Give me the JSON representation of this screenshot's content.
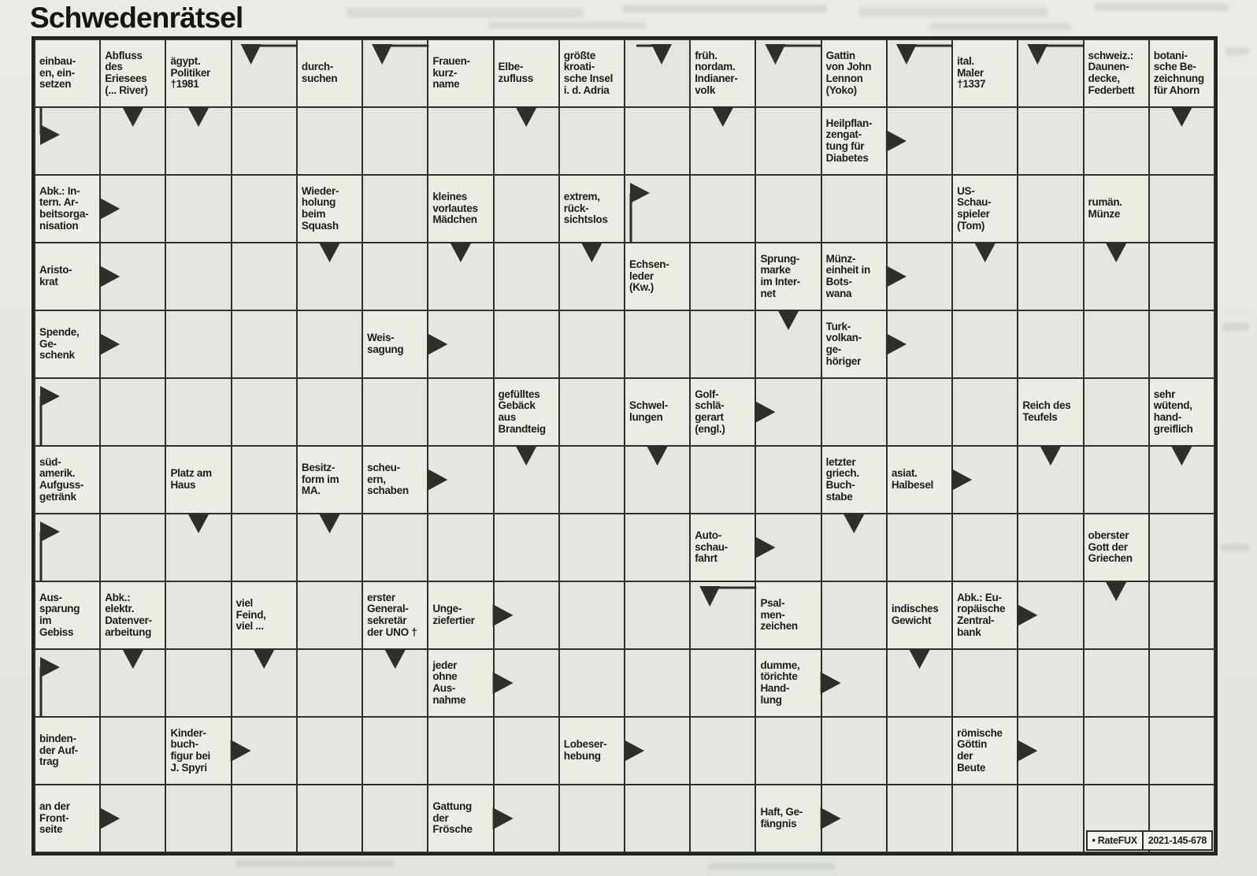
{
  "title": "Schwedenrätsel",
  "credit": {
    "label": "• RateFUX",
    "number": "2021-145-678"
  },
  "colors": {
    "paper": "#e6e9e1",
    "answer_cell": "#e3e7df",
    "clue_cell": "#ebede5",
    "grid_line": "#30302a",
    "text": "#1d1d1a",
    "arrow": "#2f2f29",
    "credit_bg": "#f4f4ee"
  },
  "grid": {
    "cols": 18,
    "rows": 12,
    "clues": [
      {
        "r": 1,
        "c": 1,
        "t": "einbau-\nen, ein-\nsetzen"
      },
      {
        "r": 1,
        "c": 2,
        "t": "Abfluss\ndes\nEriesees\n(... River)"
      },
      {
        "r": 1,
        "c": 3,
        "t": "ägypt.\nPolitiker\n†1981"
      },
      {
        "r": 1,
        "c": 5,
        "t": "durch-\nsuchen"
      },
      {
        "r": 1,
        "c": 7,
        "t": "Frauen-\nkurz-\nname"
      },
      {
        "r": 1,
        "c": 8,
        "t": "Elbe-\nzufluss"
      },
      {
        "r": 1,
        "c": 9,
        "t": "größte\nkroati-\nsche Insel\ni. d. Adria"
      },
      {
        "r": 1,
        "c": 11,
        "t": "früh.\nnordam.\nIndianer-\nvolk"
      },
      {
        "r": 1,
        "c": 13,
        "t": "Gattin\nvon John\nLennon\n(Yoko)"
      },
      {
        "r": 1,
        "c": 15,
        "t": "ital.\nMaler\n†1337"
      },
      {
        "r": 1,
        "c": 17,
        "t": "schweiz.:\nDaunen-\ndecke,\nFederbett"
      },
      {
        "r": 1,
        "c": 18,
        "t": "botani-\nsche Be-\nzeichnung\nfür Ahorn"
      },
      {
        "r": 2,
        "c": 13,
        "t": "Heilpflan-\nzengat-\ntung für\nDiabetes"
      },
      {
        "r": 3,
        "c": 1,
        "t": "Abk.: In-\ntern. Ar-\nbeitsorga-\nnisation"
      },
      {
        "r": 3,
        "c": 5,
        "t": "Wieder-\nholung\nbeim\nSquash"
      },
      {
        "r": 3,
        "c": 7,
        "t": "kleines\nvorlautes\nMädchen"
      },
      {
        "r": 3,
        "c": 9,
        "t": "extrem,\nrück-\nsichtslos"
      },
      {
        "r": 3,
        "c": 15,
        "t": "US-\nSchau-\nspieler\n(Tom)"
      },
      {
        "r": 3,
        "c": 17,
        "t": "rumän.\nMünze"
      },
      {
        "r": 4,
        "c": 1,
        "t": "Aristo-\nkrat"
      },
      {
        "r": 4,
        "c": 10,
        "t": "Echsen-\nleder\n(Kw.)"
      },
      {
        "r": 4,
        "c": 12,
        "t": "Sprung-\nmarke\nim Inter-\nnet"
      },
      {
        "r": 4,
        "c": 13,
        "t": "Münz-\neinheit in\nBots-\nwana"
      },
      {
        "r": 5,
        "c": 1,
        "t": "Spende,\nGe-\nschenk"
      },
      {
        "r": 5,
        "c": 6,
        "t": "Weis-\nsagung"
      },
      {
        "r": 5,
        "c": 13,
        "t": "Turk-\nvolkan-\nge-\nhöriger"
      },
      {
        "r": 6,
        "c": 8,
        "t": "gefülltes\nGebäck\naus\nBrandteig"
      },
      {
        "r": 6,
        "c": 10,
        "t": "Schwel-\nlungen"
      },
      {
        "r": 6,
        "c": 11,
        "t": "Golf-\nschlä-\ngerart\n(engl.)"
      },
      {
        "r": 6,
        "c": 16,
        "t": "Reich des\nTeufels"
      },
      {
        "r": 6,
        "c": 18,
        "t": "sehr\nwütend,\nhand-\ngreiflich"
      },
      {
        "r": 7,
        "c": 1,
        "t": "süd-\namerik.\nAufguss-\ngetränk"
      },
      {
        "r": 7,
        "c": 3,
        "t": "Platz am\nHaus"
      },
      {
        "r": 7,
        "c": 5,
        "t": "Besitz-\nform im\nMA."
      },
      {
        "r": 7,
        "c": 6,
        "t": "scheu-\nern,\nschaben"
      },
      {
        "r": 7,
        "c": 13,
        "t": "letzter\ngriech.\nBuch-\nstabe"
      },
      {
        "r": 7,
        "c": 14,
        "t": "asiat.\nHalbesel"
      },
      {
        "r": 8,
        "c": 11,
        "t": "Auto-\nschau-\nfahrt"
      },
      {
        "r": 8,
        "c": 17,
        "t": "oberster\nGott der\nGriechen"
      },
      {
        "r": 9,
        "c": 1,
        "t": "Aus-\nsparung\nim\nGebiss"
      },
      {
        "r": 9,
        "c": 2,
        "t": "Abk.:\nelektr.\nDatenver-\narbeitung"
      },
      {
        "r": 9,
        "c": 4,
        "t": "viel\nFeind,\nviel ..."
      },
      {
        "r": 9,
        "c": 6,
        "t": "erster\nGeneral-\nsekretär\nder UNO †"
      },
      {
        "r": 9,
        "c": 7,
        "t": "Unge-\nziefertier"
      },
      {
        "r": 9,
        "c": 12,
        "t": "Psal-\nmen-\nzeichen"
      },
      {
        "r": 9,
        "c": 14,
        "t": "indisches\nGewicht"
      },
      {
        "r": 9,
        "c": 15,
        "t": "Abk.: Eu-\nropäische\nZentral-\nbank"
      },
      {
        "r": 10,
        "c": 7,
        "t": "jeder\nohne\nAus-\nnahme"
      },
      {
        "r": 10,
        "c": 12,
        "t": "dumme,\ntörichte\nHand-\nlung"
      },
      {
        "r": 11,
        "c": 1,
        "t": "binden-\nder Auf-\ntrag"
      },
      {
        "r": 11,
        "c": 3,
        "t": "Kinder-\nbuch-\nfigur bei\nJ. Spyri"
      },
      {
        "r": 11,
        "c": 9,
        "t": "Lobeser-\nhebung"
      },
      {
        "r": 11,
        "c": 15,
        "t": "römische\nGöttin\nder\nBeute"
      },
      {
        "r": 12,
        "c": 1,
        "t": "an der\nFront-\nseite"
      },
      {
        "r": 12,
        "c": 7,
        "t": "Gattung\nder\nFrösche"
      },
      {
        "r": 12,
        "c": 12,
        "t": "Haft, Ge-\nfängnis"
      }
    ],
    "arrows": [
      {
        "r": 2,
        "c": 1,
        "type": "right-clue-above"
      },
      {
        "r": 2,
        "c": 2,
        "type": "down"
      },
      {
        "r": 2,
        "c": 3,
        "type": "down"
      },
      {
        "r": 2,
        "c": 8,
        "type": "down"
      },
      {
        "r": 2,
        "c": 11,
        "type": "down"
      },
      {
        "r": 2,
        "c": 14,
        "type": "right"
      },
      {
        "r": 2,
        "c": 18,
        "type": "down"
      },
      {
        "r": 1,
        "c": 4,
        "type": "down-clue-right"
      },
      {
        "r": 1,
        "c": 6,
        "type": "down-clue-right"
      },
      {
        "r": 1,
        "c": 10,
        "type": "down-clue-left"
      },
      {
        "r": 1,
        "c": 12,
        "type": "down-clue-right"
      },
      {
        "r": 1,
        "c": 14,
        "type": "down-clue-right"
      },
      {
        "r": 1,
        "c": 16,
        "type": "down-clue-right"
      },
      {
        "r": 3,
        "c": 2,
        "type": "right"
      },
      {
        "r": 3,
        "c": 10,
        "type": "right-clue-below"
      },
      {
        "r": 4,
        "c": 2,
        "type": "right"
      },
      {
        "r": 4,
        "c": 5,
        "type": "down"
      },
      {
        "r": 4,
        "c": 7,
        "type": "down"
      },
      {
        "r": 4,
        "c": 9,
        "type": "down"
      },
      {
        "r": 4,
        "c": 14,
        "type": "right"
      },
      {
        "r": 4,
        "c": 15,
        "type": "down"
      },
      {
        "r": 4,
        "c": 17,
        "type": "down"
      },
      {
        "r": 5,
        "c": 2,
        "type": "right"
      },
      {
        "r": 5,
        "c": 7,
        "type": "right"
      },
      {
        "r": 5,
        "c": 12,
        "type": "down"
      },
      {
        "r": 5,
        "c": 14,
        "type": "right"
      },
      {
        "r": 6,
        "c": 1,
        "type": "right-clue-below"
      },
      {
        "r": 6,
        "c": 12,
        "type": "right"
      },
      {
        "r": 7,
        "c": 7,
        "type": "right"
      },
      {
        "r": 7,
        "c": 8,
        "type": "down"
      },
      {
        "r": 7,
        "c": 10,
        "type": "down"
      },
      {
        "r": 7,
        "c": 15,
        "type": "right"
      },
      {
        "r": 7,
        "c": 16,
        "type": "down"
      },
      {
        "r": 7,
        "c": 18,
        "type": "down"
      },
      {
        "r": 8,
        "c": 1,
        "type": "right-clue-below"
      },
      {
        "r": 8,
        "c": 3,
        "type": "down"
      },
      {
        "r": 8,
        "c": 5,
        "type": "down"
      },
      {
        "r": 8,
        "c": 12,
        "type": "right"
      },
      {
        "r": 8,
        "c": 13,
        "type": "down"
      },
      {
        "r": 9,
        "c": 8,
        "type": "right"
      },
      {
        "r": 9,
        "c": 11,
        "type": "down-clue-right"
      },
      {
        "r": 9,
        "c": 16,
        "type": "right"
      },
      {
        "r": 9,
        "c": 17,
        "type": "down"
      },
      {
        "r": 10,
        "c": 1,
        "type": "right-clue-below"
      },
      {
        "r": 10,
        "c": 2,
        "type": "down"
      },
      {
        "r": 10,
        "c": 4,
        "type": "down"
      },
      {
        "r": 10,
        "c": 6,
        "type": "down"
      },
      {
        "r": 10,
        "c": 8,
        "type": "right"
      },
      {
        "r": 10,
        "c": 13,
        "type": "right"
      },
      {
        "r": 10,
        "c": 14,
        "type": "down"
      },
      {
        "r": 11,
        "c": 4,
        "type": "right"
      },
      {
        "r": 11,
        "c": 10,
        "type": "right"
      },
      {
        "r": 11,
        "c": 16,
        "type": "right"
      },
      {
        "r": 12,
        "c": 2,
        "type": "right"
      },
      {
        "r": 12,
        "c": 8,
        "type": "right"
      },
      {
        "r": 12,
        "c": 13,
        "type": "right"
      }
    ]
  }
}
